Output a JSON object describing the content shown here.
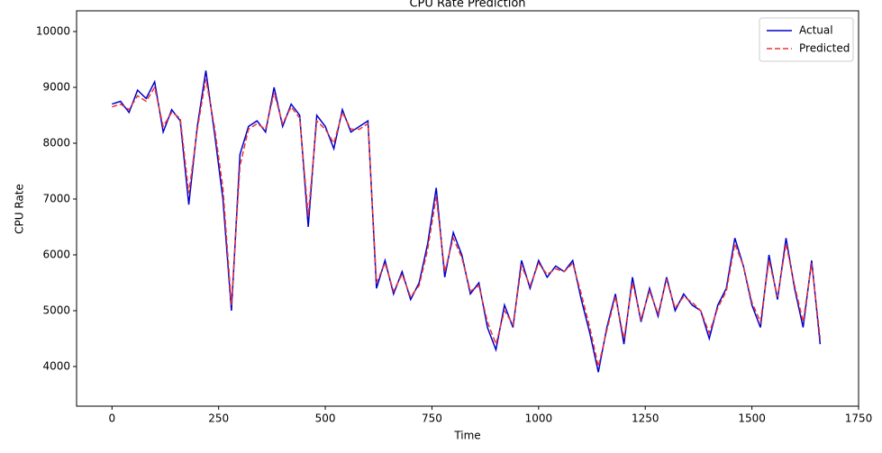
{
  "chart_data": {
    "type": "line",
    "title": "CPU Rate Prediction",
    "x_label": "Time",
    "y_label": "CPU Rate",
    "x": [
      0,
      20,
      40,
      60,
      80,
      100,
      120,
      140,
      160,
      180,
      200,
      220,
      240,
      260,
      280,
      300,
      320,
      340,
      360,
      380,
      400,
      420,
      440,
      460,
      480,
      500,
      520,
      540,
      560,
      580,
      600,
      620,
      640,
      660,
      680,
      700,
      720,
      740,
      760,
      780,
      800,
      820,
      840,
      860,
      880,
      900,
      920,
      940,
      960,
      980,
      1000,
      1020,
      1040,
      1060,
      1080,
      1100,
      1120,
      1140,
      1160,
      1180,
      1200,
      1220,
      1240,
      1260,
      1280,
      1300,
      1320,
      1340,
      1360,
      1380,
      1400,
      1420,
      1440,
      1460,
      1480,
      1500,
      1520,
      1540,
      1560,
      1580,
      1600,
      1620,
      1640,
      1660
    ],
    "series": [
      {
        "name": "Actual",
        "color": "#0000cc",
        "dash": false,
        "values": [
          8700,
          8750,
          8550,
          8950,
          8800,
          9100,
          8200,
          8600,
          8400,
          6900,
          8300,
          9300,
          8200,
          7000,
          5000,
          7800,
          8300,
          8400,
          8200,
          9000,
          8300,
          8700,
          8500,
          6500,
          8500,
          8300,
          7900,
          8600,
          8200,
          8300,
          8400,
          5400,
          5900,
          5300,
          5700,
          5200,
          5500,
          6200,
          7200,
          5600,
          6400,
          6000,
          5300,
          5500,
          4700,
          4300,
          5100,
          4700,
          5900,
          5400,
          5900,
          5600,
          5800,
          5700,
          5900,
          5200,
          4600,
          3900,
          4700,
          5300,
          4400,
          5600,
          4800,
          5400,
          4900,
          5600,
          5000,
          5300,
          5100,
          5000,
          4500,
          5100,
          5400,
          6300,
          5800,
          5100,
          4700,
          6000,
          5200,
          6300,
          5400,
          4700,
          5900,
          4400
        ]
      },
      {
        "name": "Predicted",
        "color": "#ee3333",
        "dash": true,
        "values": [
          8650,
          8700,
          8600,
          8850,
          8750,
          9000,
          8300,
          8550,
          8450,
          7100,
          8250,
          9150,
          8300,
          7200,
          5100,
          7600,
          8250,
          8350,
          8250,
          8900,
          8350,
          8650,
          8450,
          6700,
          8400,
          8250,
          8000,
          8550,
          8250,
          8250,
          8350,
          5500,
          5850,
          5350,
          5650,
          5250,
          5450,
          6100,
          7050,
          5700,
          6300,
          5950,
          5350,
          5450,
          4800,
          4400,
          5000,
          4750,
          5800,
          5450,
          5850,
          5650,
          5750,
          5700,
          5850,
          5300,
          4700,
          4000,
          4650,
          5250,
          4500,
          5500,
          4850,
          5350,
          4950,
          5550,
          5050,
          5250,
          5150,
          5000,
          4600,
          5050,
          5350,
          6200,
          5800,
          5150,
          4800,
          5900,
          5250,
          6200,
          5450,
          4800,
          5850,
          4500
        ]
      }
    ],
    "xlim": [
      -83,
      1750
    ],
    "ylim": [
      3290,
      10371
    ],
    "xticks": [
      0,
      250,
      500,
      750,
      1000,
      1250,
      1500,
      1750
    ],
    "yticks": [
      4000,
      5000,
      6000,
      7000,
      8000,
      9000,
      10000
    ],
    "legend": "upper right"
  }
}
